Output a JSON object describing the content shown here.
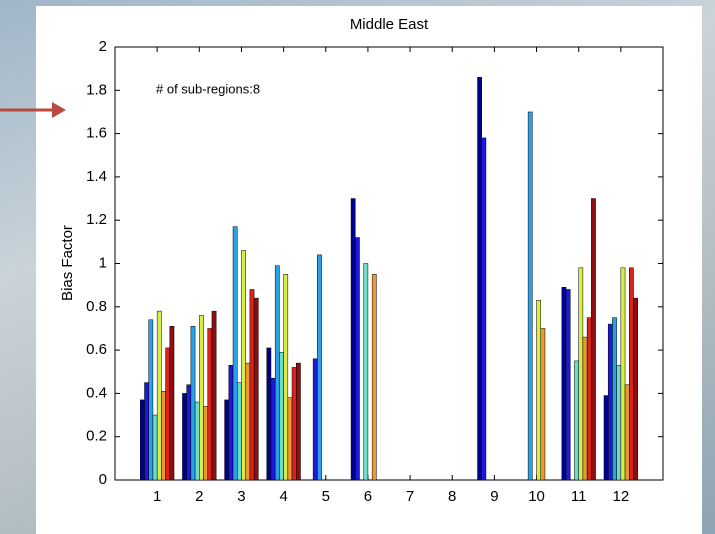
{
  "chart_data": {
    "type": "bar",
    "title": "Middle East",
    "ylabel": "Bias Factor",
    "annotation": "# of sub-regions:8",
    "categories": [
      "1",
      "2",
      "3",
      "4",
      "5",
      "6",
      "7",
      "8",
      "9",
      "10",
      "11",
      "12"
    ],
    "xlim": [
      0,
      13
    ],
    "ylim": [
      0,
      2
    ],
    "yticks": [
      0,
      0.2,
      0.4,
      0.6,
      0.8,
      1,
      1.2,
      1.4,
      1.6,
      1.8,
      2
    ],
    "series": [
      {
        "color": "#00008f",
        "values": [
          0.37,
          0.4,
          0.37,
          0.61,
          null,
          1.3,
          null,
          null,
          1.86,
          null,
          0.89,
          0.39
        ]
      },
      {
        "color": "#1a1ad8",
        "values": [
          0.45,
          0.44,
          0.53,
          0.47,
          0.56,
          1.12,
          null,
          null,
          1.58,
          null,
          0.88,
          0.72
        ]
      },
      {
        "color": "#2aa0e6",
        "values": [
          0.74,
          0.71,
          1.17,
          0.99,
          1.04,
          null,
          null,
          null,
          null,
          1.7,
          null,
          0.75
        ]
      },
      {
        "color": "#6fdcc8",
        "values": [
          0.3,
          0.36,
          0.45,
          0.59,
          null,
          1.0,
          null,
          null,
          null,
          null,
          0.55,
          0.53
        ]
      },
      {
        "color": "#d8ec4a",
        "values": [
          0.78,
          0.76,
          1.06,
          0.95,
          null,
          null,
          null,
          null,
          null,
          0.83,
          0.98,
          0.98
        ]
      },
      {
        "color": "#e99a32",
        "values": [
          0.41,
          0.34,
          0.54,
          0.38,
          null,
          0.95,
          null,
          null,
          null,
          0.7,
          0.66,
          0.44
        ]
      },
      {
        "color": "#d8231e",
        "values": [
          0.61,
          0.7,
          0.88,
          0.52,
          null,
          null,
          null,
          null,
          null,
          null,
          0.75,
          0.98
        ]
      },
      {
        "color": "#8f0f0f",
        "values": [
          0.71,
          0.78,
          0.84,
          0.54,
          null,
          null,
          null,
          null,
          null,
          null,
          1.3,
          0.84
        ]
      }
    ]
  }
}
